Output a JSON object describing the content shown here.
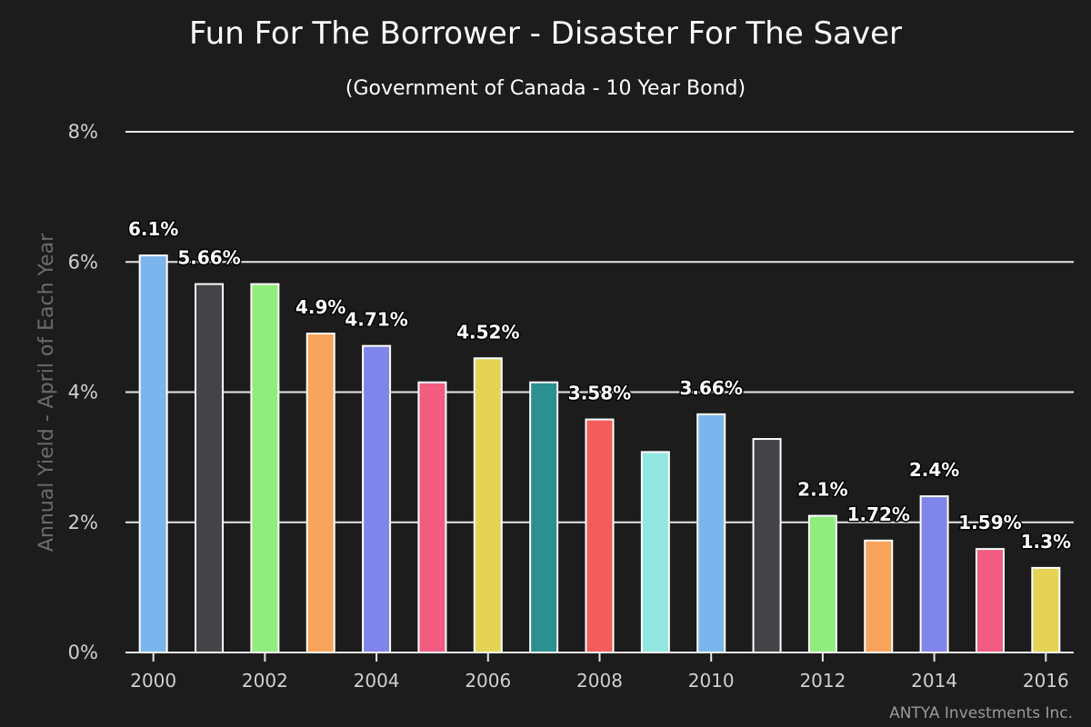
{
  "chart_data": {
    "type": "bar",
    "title": "Fun For The Borrower - Disaster For The Saver",
    "subtitle": "(Government of Canada - 10 Year Bond)",
    "ylabel": "Annual Yield - April of Each Year",
    "xlabel": "",
    "ylim": [
      0,
      8
    ],
    "yticks": [
      "0%",
      "2%",
      "4%",
      "6%",
      "8%"
    ],
    "xtick_labels": [
      "2000",
      "2002",
      "2004",
      "2006",
      "2008",
      "2010",
      "2012",
      "2014",
      "2016"
    ],
    "categories": [
      "2000",
      "2001",
      "2002",
      "2003",
      "2004",
      "2005",
      "2006",
      "2007",
      "2008",
      "2009",
      "2010",
      "2011",
      "2012",
      "2013",
      "2014",
      "2015",
      "2016"
    ],
    "values": [
      6.1,
      5.66,
      5.66,
      4.9,
      4.71,
      4.15,
      4.52,
      4.15,
      3.58,
      3.08,
      3.66,
      3.28,
      2.1,
      1.72,
      2.4,
      1.59,
      1.3
    ],
    "data_labels": [
      "6.1%",
      "5.66%",
      "",
      "4.9%",
      "4.71%",
      "",
      "4.52%",
      "",
      "3.58%",
      "",
      "3.66%",
      "",
      "2.1%",
      "1.72%",
      "2.4%",
      "1.59%",
      "1.3%"
    ],
    "colors": [
      "#7cb5ec",
      "#434348",
      "#90ed7d",
      "#f7a35c",
      "#8085e9",
      "#f15c80",
      "#e4d354",
      "#2b908f",
      "#f45b5b",
      "#91e8e1",
      "#7cb5ec",
      "#434348",
      "#90ed7d",
      "#f7a35c",
      "#8085e9",
      "#f15c80",
      "#e4d354"
    ],
    "grid": true,
    "legend": "none"
  },
  "credit": "ANTYA Investments Inc."
}
